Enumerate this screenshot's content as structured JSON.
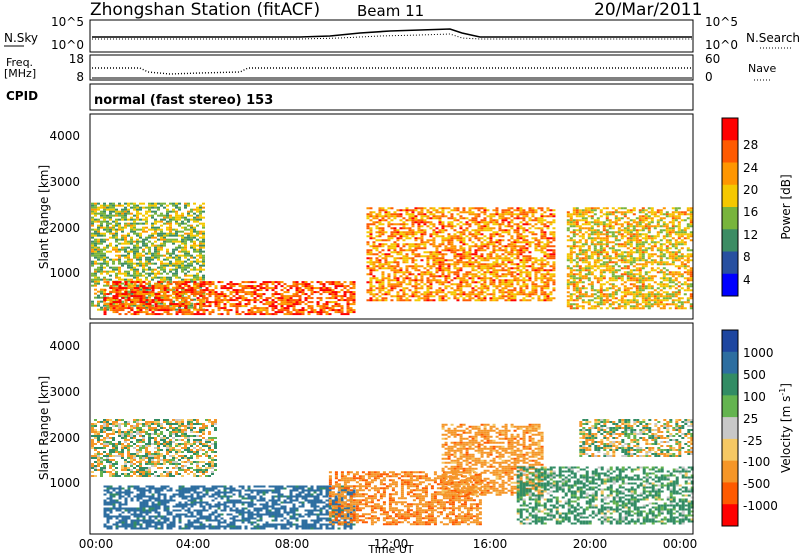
{
  "header": {
    "title": "Zhongshan Station (fitACF)",
    "beam": "Beam 11",
    "date": "20/Mar/2011"
  },
  "nsky_panel": {
    "left_label": "N.Sky",
    "right_label": "N.Search",
    "left_ticks": [
      "10^5",
      "10^0"
    ],
    "right_ticks": [
      "10^5",
      "10^0"
    ]
  },
  "freq_panel": {
    "left_label_1": "Freq.",
    "left_label_2": "[MHz]",
    "right_label": "Nave",
    "left_ticks": [
      "18",
      "8"
    ],
    "right_ticks": [
      "60",
      "0"
    ]
  },
  "cpid": {
    "label": "CPID",
    "text": "normal (fast stereo) 153"
  },
  "axes": {
    "ylabel": "Slant Range [km]",
    "y_ticks": [
      "4000",
      "3000",
      "2000",
      "1000"
    ],
    "x_ticks": [
      "00:00",
      "04:00",
      "08:00",
      "12:00",
      "16:00",
      "20:00",
      "00:00"
    ],
    "xlabel": "Time UT"
  },
  "power_colorbar": {
    "label": "Power [dB]",
    "ticks": [
      "28",
      "24",
      "20",
      "16",
      "12",
      "8",
      "4"
    ],
    "colors": [
      "#ff0000",
      "#ff5a00",
      "#ff9600",
      "#f5c800",
      "#78b43c",
      "#3c8c64",
      "#2850a0",
      "#0000ff"
    ]
  },
  "velocity_colorbar": {
    "label": "Velocity [m s",
    "label_sup": "-1",
    "label_end": "]",
    "ticks": [
      "1000",
      "500",
      "100",
      "25",
      "-25",
      "-100",
      "-500",
      "-1000"
    ],
    "colors": [
      "#1e46a0",
      "#2d6ea0",
      "#328c64",
      "#64b450",
      "#c8c8c8",
      "#f5c864",
      "#f59628",
      "#ff5a00",
      "#ff0000"
    ]
  },
  "chart_data": [
    {
      "type": "heatmap",
      "title": "Power",
      "xlabel": "Time UT",
      "ylabel": "Slant Range [km]",
      "xlim": [
        "00:00",
        "24:00"
      ],
      "ylim": [
        200,
        4600
      ],
      "colorbar": {
        "label": "Power [dB]",
        "range": [
          0,
          30
        ]
      },
      "echo_regions": [
        {
          "t_start": 0.0,
          "t_end": 4.5,
          "range_low": 400,
          "range_high": 2700,
          "power_db": 14
        },
        {
          "t_start": 0.5,
          "t_end": 10.5,
          "range_low": 300,
          "range_high": 1000,
          "power_db": 26
        },
        {
          "t_start": 11.0,
          "t_end": 18.5,
          "range_low": 600,
          "range_high": 2600,
          "power_db": 22
        },
        {
          "t_start": 19.0,
          "t_end": 24.0,
          "range_low": 400,
          "range_high": 2600,
          "power_db": 18
        }
      ]
    },
    {
      "type": "heatmap",
      "title": "Velocity",
      "xlabel": "Time UT",
      "ylabel": "Slant Range [km]",
      "xlim": [
        "00:00",
        "24:00"
      ],
      "ylim": [
        200,
        4600
      ],
      "colorbar": {
        "label": "Velocity [m s-1]",
        "range": [
          -1000,
          1000
        ]
      },
      "echo_regions": [
        {
          "t_start": 0.0,
          "t_end": 5.0,
          "range_low": 1400,
          "range_high": 2600,
          "velocity": 0
        },
        {
          "t_start": 0.5,
          "t_end": 10.5,
          "range_low": 300,
          "range_high": 1200,
          "velocity": 700
        },
        {
          "t_start": 9.5,
          "t_end": 15.5,
          "range_low": 400,
          "range_high": 1500,
          "velocity": -400
        },
        {
          "t_start": 14.0,
          "t_end": 18.0,
          "range_low": 1000,
          "range_high": 2500,
          "velocity": -300
        },
        {
          "t_start": 17.0,
          "t_end": 24.0,
          "range_low": 400,
          "range_high": 1600,
          "velocity": 200
        },
        {
          "t_start": 19.5,
          "t_end": 24.0,
          "range_low": 1800,
          "range_high": 2600,
          "velocity": 0
        }
      ]
    }
  ]
}
